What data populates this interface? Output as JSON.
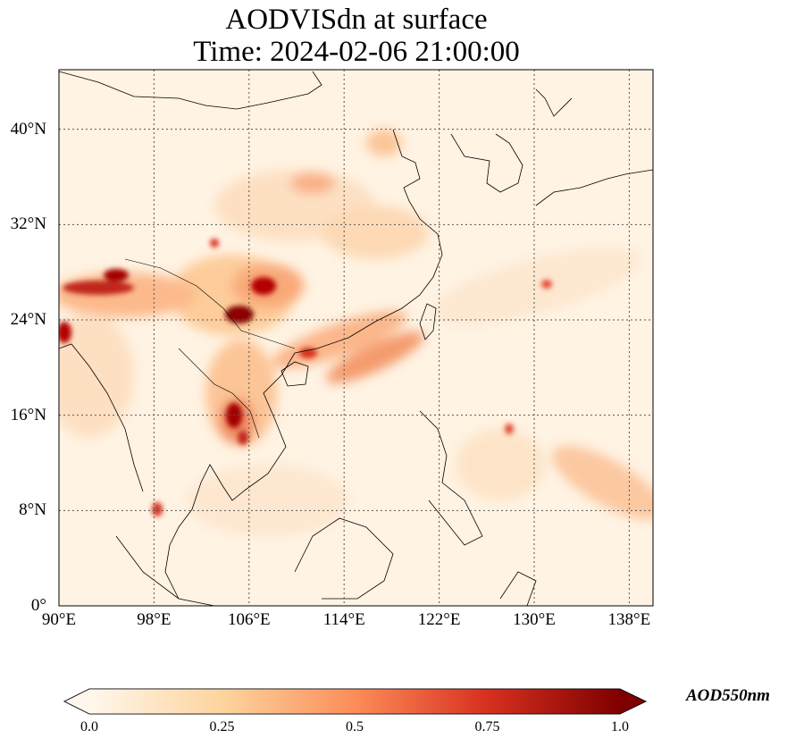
{
  "title_line1": "AODVISdn at surface",
  "title_line2": "Time: 2024-02-06 21:00:00",
  "map": {
    "extent": {
      "lon_min": 90,
      "lon_max": 140,
      "lat_min": 0,
      "lat_max": 45
    },
    "lat_ticks": [
      {
        "value": 0,
        "label": "0°"
      },
      {
        "value": 8,
        "label": "8°N"
      },
      {
        "value": 16,
        "label": "16°N"
      },
      {
        "value": 24,
        "label": "24°N"
      },
      {
        "value": 32,
        "label": "32°N"
      },
      {
        "value": 40,
        "label": "40°N"
      }
    ],
    "lon_ticks": [
      {
        "value": 90,
        "label": "90°E"
      },
      {
        "value": 98,
        "label": "98°E"
      },
      {
        "value": 106,
        "label": "106°E"
      },
      {
        "value": 114,
        "label": "114°E"
      },
      {
        "value": 122,
        "label": "122°E"
      },
      {
        "value": 130,
        "label": "130°E"
      },
      {
        "value": 138,
        "label": "138°E"
      }
    ],
    "gridlines": true,
    "colormap": "OrRd",
    "colors": {
      "low": "#fff7ec",
      "mid": "#fc8d59",
      "high": "#7f0000",
      "coast": "#000000",
      "grid": "#555555"
    }
  },
  "colorbar": {
    "label": "AOD550nm",
    "min": 0.0,
    "max": 1.0,
    "ticks": [
      "0.0",
      "0.25",
      "0.5",
      "0.75",
      "1.0"
    ],
    "extend": "both"
  }
}
